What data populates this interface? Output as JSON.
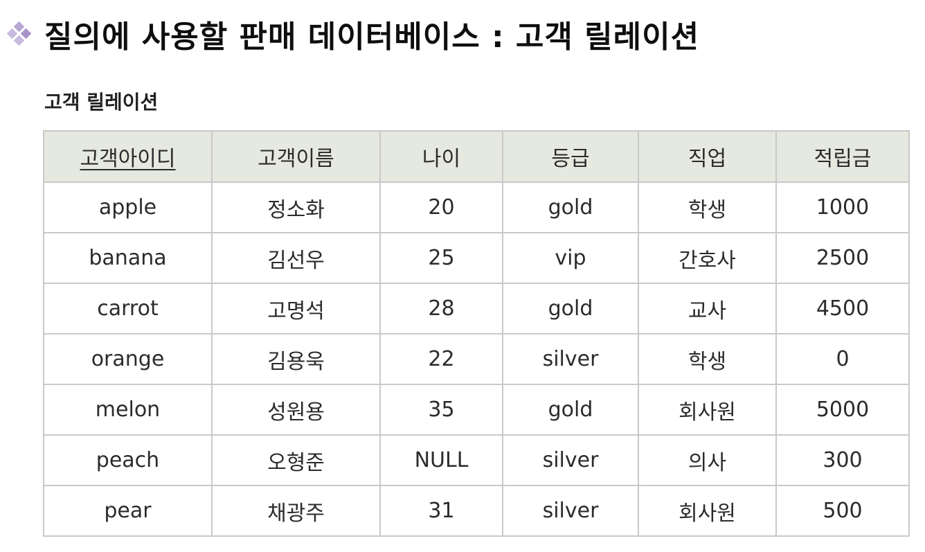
{
  "title": "질의에 사용할 판매 데이터베이스 : 고객 릴레이션",
  "section_label": "고객 릴레이션",
  "table": {
    "columns": [
      "고객아이디",
      "고객이름",
      "나이",
      "등급",
      "직업",
      "적립금"
    ],
    "primary_key_column": "고객아이디",
    "rows": [
      [
        "apple",
        "정소화",
        "20",
        "gold",
        "학생",
        "1000"
      ],
      [
        "banana",
        "김선우",
        "25",
        "vip",
        "간호사",
        "2500"
      ],
      [
        "carrot",
        "고명석",
        "28",
        "gold",
        "교사",
        "4500"
      ],
      [
        "orange",
        "김용욱",
        "22",
        "silver",
        "학생",
        "0"
      ],
      [
        "melon",
        "성원용",
        "35",
        "gold",
        "회사원",
        "5000"
      ],
      [
        "peach",
        "오형준",
        "NULL",
        "silver",
        "의사",
        "300"
      ],
      [
        "pear",
        "채광주",
        "31",
        "silver",
        "회사원",
        "500"
      ]
    ]
  },
  "colors": {
    "header_bg": "#e6e9df",
    "border": "#c9c9c9",
    "bullet": "#b8a6d3"
  },
  "icons": {
    "bullet": "diamond-cluster-bullet-icon"
  }
}
